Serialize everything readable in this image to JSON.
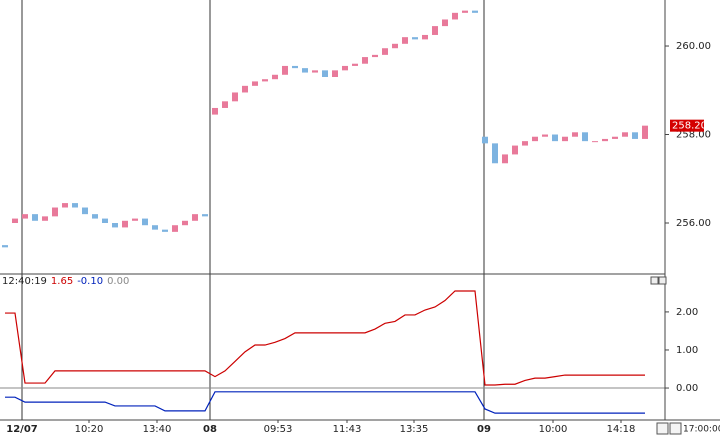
{
  "chart_data": [
    {
      "type": "candlestick",
      "xlim": [
        -0.5,
        66
      ],
      "ylim": [
        254.87,
        261.04
      ],
      "yticks": [
        {
          "value": 256,
          "label": "256.00"
        },
        {
          "value": 258,
          "label": "258.00"
        },
        {
          "value": 260,
          "label": "260.00"
        }
      ],
      "last_price": {
        "value": 258.2,
        "label": "258.20"
      },
      "up_color": "#e8799a",
      "down_color": "#7db3e0",
      "open": [
        255.5,
        256.0,
        256.1,
        256.2,
        256.05,
        256.15,
        256.35,
        256.45,
        256.35,
        256.2,
        256.1,
        256.0,
        255.9,
        256.05,
        256.1,
        255.95,
        255.85,
        255.8,
        255.95,
        256.05,
        256.2,
        258.45,
        258.6,
        258.75,
        258.95,
        259.1,
        259.2,
        259.25,
        259.35,
        259.55,
        259.5,
        259.4,
        259.45,
        259.3,
        259.45,
        259.55,
        259.6,
        259.75,
        259.8,
        259.95,
        260.05,
        260.2,
        260.15,
        260.25,
        260.45,
        260.6,
        260.75,
        260.8,
        257.95,
        257.8,
        257.35,
        257.55,
        257.75,
        257.85,
        257.95,
        258.0,
        257.85,
        257.95,
        258.05,
        257.85,
        257.85,
        257.9,
        257.95,
        258.05,
        257.9
      ],
      "close": [
        255.45,
        256.1,
        256.2,
        256.05,
        256.15,
        256.35,
        256.45,
        256.35,
        256.2,
        256.1,
        256.0,
        255.9,
        256.05,
        256.1,
        255.95,
        255.85,
        255.8,
        255.95,
        256.05,
        256.2,
        256.15,
        258.6,
        258.75,
        258.95,
        259.1,
        259.2,
        259.25,
        259.35,
        259.55,
        259.5,
        259.4,
        259.45,
        259.3,
        259.45,
        259.55,
        259.6,
        259.75,
        259.8,
        259.95,
        260.05,
        260.2,
        260.15,
        260.25,
        260.45,
        260.6,
        260.75,
        260.8,
        260.75,
        257.8,
        257.35,
        257.55,
        257.75,
        257.85,
        257.95,
        258.0,
        257.85,
        257.95,
        258.05,
        257.85,
        257.85,
        257.9,
        257.95,
        258.05,
        257.9,
        258.2
      ],
      "day_ticks": [
        {
          "value": 1.7,
          "label": "12/07"
        },
        {
          "value": 20.5,
          "label": "08"
        },
        {
          "value": 47.9,
          "label": "09"
        }
      ]
    },
    {
      "type": "line",
      "xlim": [
        -0.5,
        66
      ],
      "ylim": [
        -0.84,
        2.97
      ],
      "yticks": [
        {
          "value": 0,
          "label": "0.00"
        },
        {
          "value": 1,
          "label": "1.00"
        },
        {
          "value": 2,
          "label": "2.00"
        }
      ],
      "readout": [
        "12:40:19",
        "1.65",
        "-0.10",
        "0.00"
      ],
      "zero_line": {
        "value": 0,
        "color": "#8a8a8a"
      },
      "series": [
        {
          "color": "#cc0000",
          "values": [
            1.97,
            1.97,
            0.13,
            0.13,
            0.13,
            0.45,
            0.45,
            0.45,
            0.45,
            0.45,
            0.45,
            0.45,
            0.45,
            0.45,
            0.45,
            0.45,
            0.45,
            0.45,
            0.45,
            0.45,
            0.45,
            0.3,
            0.45,
            0.7,
            0.95,
            1.13,
            1.13,
            1.2,
            1.3,
            1.45,
            1.45,
            1.45,
            1.45,
            1.45,
            1.45,
            1.45,
            1.45,
            1.55,
            1.7,
            1.75,
            1.92,
            1.92,
            2.05,
            2.13,
            2.3,
            2.55,
            2.55,
            2.55,
            0.08,
            0.08,
            0.1,
            0.1,
            0.2,
            0.26,
            0.26,
            0.3,
            0.34,
            0.34,
            0.34,
            0.34,
            0.34,
            0.34,
            0.34,
            0.34,
            0.34
          ]
        },
        {
          "color": "#0022bb",
          "values": [
            -0.24,
            -0.24,
            -0.37,
            -0.37,
            -0.37,
            -0.37,
            -0.37,
            -0.37,
            -0.37,
            -0.37,
            -0.37,
            -0.47,
            -0.47,
            -0.47,
            -0.47,
            -0.47,
            -0.6,
            -0.6,
            -0.6,
            -0.6,
            -0.6,
            -0.1,
            -0.1,
            -0.1,
            -0.1,
            -0.1,
            -0.1,
            -0.1,
            -0.1,
            -0.1,
            -0.1,
            -0.1,
            -0.1,
            -0.1,
            -0.1,
            -0.1,
            -0.1,
            -0.1,
            -0.1,
            -0.1,
            -0.1,
            -0.1,
            -0.1,
            -0.1,
            -0.1,
            -0.1,
            -0.1,
            -0.1,
            -0.55,
            -0.66,
            -0.66,
            -0.66,
            -0.66,
            -0.66,
            -0.66,
            -0.66,
            -0.66,
            -0.66,
            -0.66,
            -0.66,
            -0.66,
            -0.66,
            -0.66,
            -0.66,
            -0.66
          ]
        }
      ],
      "xticks": [
        {
          "value": 8.4,
          "label": "10:20"
        },
        {
          "value": 15.2,
          "label": "13:40"
        },
        {
          "value": 27.3,
          "label": "09:53"
        },
        {
          "value": 34.2,
          "label": "11:43"
        },
        {
          "value": 40.9,
          "label": "13:35"
        },
        {
          "value": 54.8,
          "label": "10:00"
        },
        {
          "value": 61.6,
          "label": "14:18"
        }
      ]
    }
  ],
  "status": {
    "time": "17:00:00"
  }
}
